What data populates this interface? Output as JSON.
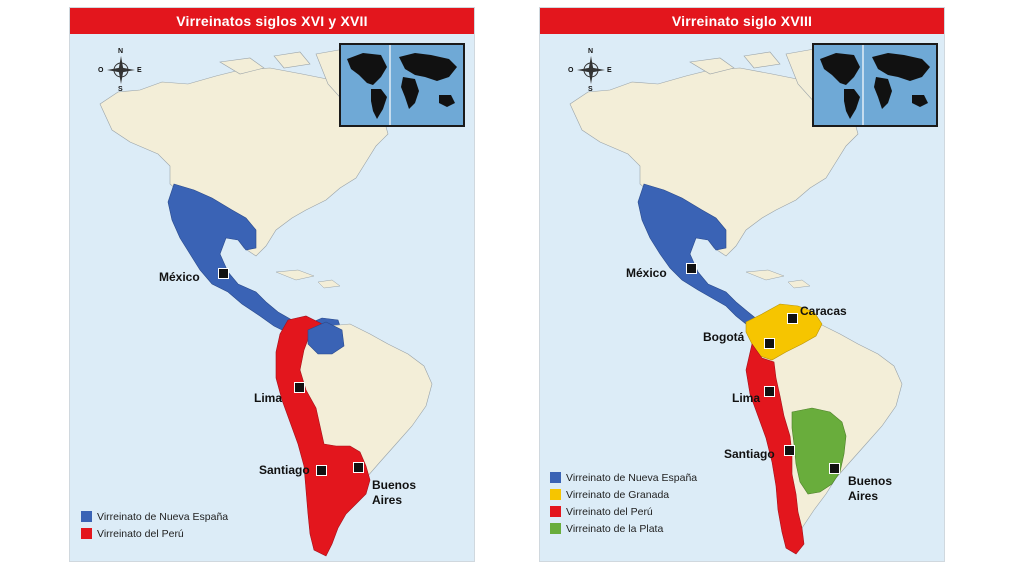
{
  "colors": {
    "nueva_espana": "#3a63b5",
    "peru": "#e3161d",
    "granada": "#f6c500",
    "plata": "#69ad3c",
    "land": "#f3eed8",
    "ocean": "#dcecf7",
    "title_bar": "#e3161d"
  },
  "left_map": {
    "title": "Virreinatos siglos XVI y XVII",
    "compass": {
      "n": "N",
      "s": "S",
      "e": "E",
      "o": "O"
    },
    "cities": {
      "mexico": "México",
      "lima": "Lima",
      "santiago": "Santiago",
      "buenos_aires_1": "Buenos",
      "buenos_aires_2": "Aires"
    },
    "legend": [
      {
        "label": "Virreinato de Nueva España",
        "color": "#3a63b5"
      },
      {
        "label": "Virreinato del Perú",
        "color": "#e3161d"
      }
    ]
  },
  "right_map": {
    "title": "Virreinato siglo XVIII",
    "compass": {
      "n": "N",
      "s": "S",
      "e": "E",
      "o": "O"
    },
    "cities": {
      "mexico": "México",
      "caracas": "Caracas",
      "bogota": "Bogotá",
      "lima": "Lima",
      "santiago": "Santiago",
      "buenos_aires_1": "Buenos",
      "buenos_aires_2": "Aires"
    },
    "legend": [
      {
        "label": "Virreinato de Nueva España",
        "color": "#3a63b5"
      },
      {
        "label": "Virreinato de Granada",
        "color": "#f6c500"
      },
      {
        "label": "Virreinato del Perú",
        "color": "#e3161d"
      },
      {
        "label": "Virreinato de la Plata",
        "color": "#69ad3c"
      }
    ]
  }
}
